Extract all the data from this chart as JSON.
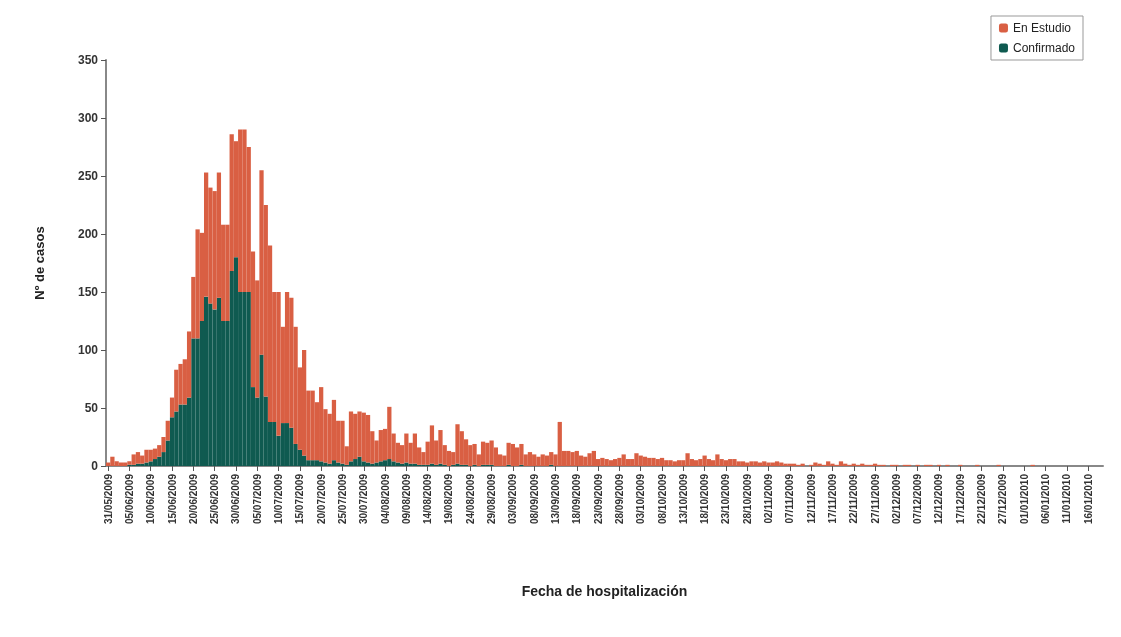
{
  "chart_data": {
    "type": "bar",
    "stacked": true,
    "xlabel": "Fecha de hospitalización",
    "ylabel": "Nº de casos",
    "categories": [
      "31/05/2009",
      null,
      null,
      null,
      null,
      "05/06/2009",
      null,
      null,
      null,
      null,
      "10/06/2009",
      null,
      null,
      null,
      null,
      "15/06/2009",
      null,
      null,
      null,
      null,
      "20/06/2009",
      null,
      null,
      null,
      null,
      "25/06/2009",
      null,
      null,
      null,
      null,
      "30/06/2009",
      null,
      null,
      null,
      null,
      "05/07/2009",
      null,
      null,
      null,
      null,
      "10/07/2009",
      null,
      null,
      null,
      null,
      "15/07/2009",
      null,
      null,
      null,
      null,
      "20/07/2009",
      null,
      null,
      null,
      null,
      "25/07/2009",
      null,
      null,
      null,
      null,
      "30/07/2009",
      null,
      null,
      null,
      null,
      "04/08/2009",
      null,
      null,
      null,
      null,
      "09/08/2009",
      null,
      null,
      null,
      null,
      "14/08/2009",
      null,
      null,
      null,
      null,
      "19/08/2009",
      null,
      null,
      null,
      null,
      "24/08/2009",
      null,
      null,
      null,
      null,
      "29/08/2009",
      null,
      null,
      null,
      null,
      "03/09/2009",
      null,
      null,
      null,
      null,
      "08/09/2009",
      null,
      null,
      null,
      null,
      "13/09/2009",
      null,
      null,
      null,
      null,
      "18/09/2009",
      null,
      null,
      null,
      null,
      "23/09/2009",
      null,
      null,
      null,
      null,
      "28/09/2009",
      null,
      null,
      null,
      null,
      "03/10/2009",
      null,
      null,
      null,
      null,
      "08/10/2009",
      null,
      null,
      null,
      null,
      "13/10/2009",
      null,
      null,
      null,
      null,
      "18/10/2009",
      null,
      null,
      null,
      null,
      "23/10/2009",
      null,
      null,
      null,
      null,
      "28/10/2009",
      null,
      null,
      null,
      null,
      "02/11/2009",
      null,
      null,
      null,
      null,
      "07/11/2009",
      null,
      null,
      null,
      null,
      "12/11/2009",
      null,
      null,
      null,
      null,
      "17/11/2009",
      null,
      null,
      null,
      null,
      "22/11/2009",
      null,
      null,
      null,
      null,
      "27/11/2009",
      null,
      null,
      null,
      null,
      "02/12/2009",
      null,
      null,
      null,
      null,
      "07/12/2009",
      null,
      null,
      null,
      null,
      "12/12/2009",
      null,
      null,
      null,
      null,
      "17/12/2009",
      null,
      null,
      null,
      null,
      "22/12/2009",
      null,
      null,
      null,
      null,
      "27/12/2009",
      null,
      null,
      null,
      null,
      "01/01/2010",
      null,
      null,
      null,
      null,
      "06/01/2010",
      null,
      null,
      null,
      null,
      "11/01/2010",
      null,
      null,
      null,
      null,
      "16/01/2010",
      null,
      null,
      null
    ],
    "series": [
      {
        "name": "Confirmado",
        "color": "#0f5a50",
        "values": [
          0,
          0,
          0,
          0,
          0,
          1,
          1,
          2,
          2,
          3,
          4,
          6,
          8,
          12,
          22,
          42,
          47,
          53,
          53,
          59,
          110,
          110,
          125,
          146,
          140,
          135,
          145,
          125,
          125,
          168,
          180,
          150,
          150,
          150,
          68,
          59,
          96,
          60,
          38,
          38,
          26,
          37,
          37,
          33,
          19,
          14,
          9,
          5,
          5,
          5,
          4,
          3,
          2,
          5,
          3,
          2,
          1,
          4,
          6,
          8,
          4,
          3,
          2,
          3,
          4,
          5,
          6,
          4,
          3,
          2,
          3,
          2,
          2,
          1,
          1,
          1,
          2,
          1,
          2,
          1,
          0,
          1,
          2,
          1,
          1,
          0,
          1,
          0,
          1,
          1,
          1,
          0,
          0,
          0,
          1,
          0,
          0,
          1,
          0,
          0,
          0,
          0,
          0,
          0,
          1,
          0,
          0,
          0,
          0,
          0,
          0,
          0,
          0,
          0,
          0,
          0,
          0,
          0,
          0,
          0,
          0,
          0,
          0,
          0,
          0,
          0,
          0,
          0,
          0,
          0,
          0,
          0,
          0,
          0,
          0,
          0,
          0,
          0,
          0,
          0,
          0,
          0,
          0,
          0,
          0,
          0,
          0,
          0,
          0,
          0,
          0,
          0,
          0,
          0,
          0,
          0,
          0,
          0,
          0,
          0,
          0,
          0,
          0,
          0,
          0,
          0,
          0,
          0,
          0,
          0,
          0,
          0,
          0,
          0,
          0,
          0,
          0,
          0,
          0,
          0,
          0,
          0,
          0,
          0,
          0,
          0,
          0,
          0,
          0,
          0,
          0,
          0,
          0,
          0,
          0,
          0,
          0,
          0,
          0,
          0,
          0,
          0,
          0,
          0,
          0,
          0,
          0,
          0,
          0,
          0,
          0,
          0,
          0,
          0,
          0,
          0,
          0,
          0,
          0,
          0,
          0,
          0,
          0,
          0,
          0,
          0,
          0,
          0,
          0,
          0,
          0,
          0,
          0,
          0
        ]
      },
      {
        "name": "En Estudio",
        "color": "#d95f43",
        "values": [
          3,
          8,
          4,
          3,
          3,
          3,
          9,
          10,
          7,
          11,
          10,
          9,
          10,
          13,
          17,
          17,
          36,
          35,
          39,
          57,
          53,
          94,
          76,
          107,
          100,
          102,
          108,
          83,
          83,
          118,
          100,
          140,
          140,
          125,
          117,
          101,
          159,
          165,
          152,
          112,
          124,
          83,
          113,
          112,
          101,
          71,
          91,
          60,
          60,
          50,
          64,
          46,
          43,
          52,
          36,
          37,
          16,
          43,
          39,
          39,
          42,
          41,
          28,
          19,
          27,
          27,
          45,
          24,
          17,
          16,
          25,
          18,
          26,
          15,
          11,
          20,
          33,
          21,
          29,
          17,
          13,
          11,
          34,
          29,
          22,
          18,
          18,
          10,
          20,
          19,
          21,
          16,
          10,
          9,
          19,
          19,
          16,
          18,
          10,
          12,
          10,
          8,
          10,
          9,
          11,
          10,
          38,
          13,
          13,
          12,
          13,
          9,
          8,
          11,
          13,
          6,
          7,
          6,
          5,
          6,
          7,
          10,
          6,
          6,
          11,
          9,
          8,
          7,
          7,
          6,
          7,
          5,
          5,
          4,
          5,
          5,
          11,
          6,
          5,
          6,
          9,
          6,
          5,
          10,
          6,
          5,
          6,
          6,
          4,
          4,
          3,
          4,
          4,
          3,
          4,
          3,
          3,
          4,
          3,
          2,
          2,
          2,
          1,
          2,
          0,
          1,
          3,
          2,
          1,
          4,
          2,
          1,
          4,
          2,
          1,
          2,
          1,
          2,
          1,
          1,
          2,
          1,
          1,
          0,
          1,
          1,
          0,
          1,
          1,
          0,
          1,
          0,
          1,
          1,
          0,
          1,
          0,
          1,
          0,
          0,
          1,
          0,
          0,
          0,
          1,
          0,
          0,
          0,
          0,
          1,
          0,
          0,
          0,
          0,
          0,
          0,
          0,
          1,
          0,
          0,
          0,
          0,
          0,
          0,
          0,
          0,
          0,
          0,
          0,
          0,
          0,
          0,
          0,
          0
        ]
      }
    ],
    "ylim": [
      0,
      350
    ],
    "yticks": [
      0,
      50,
      100,
      150,
      200,
      250,
      300,
      350
    ],
    "grid": false,
    "legend": "top right"
  }
}
